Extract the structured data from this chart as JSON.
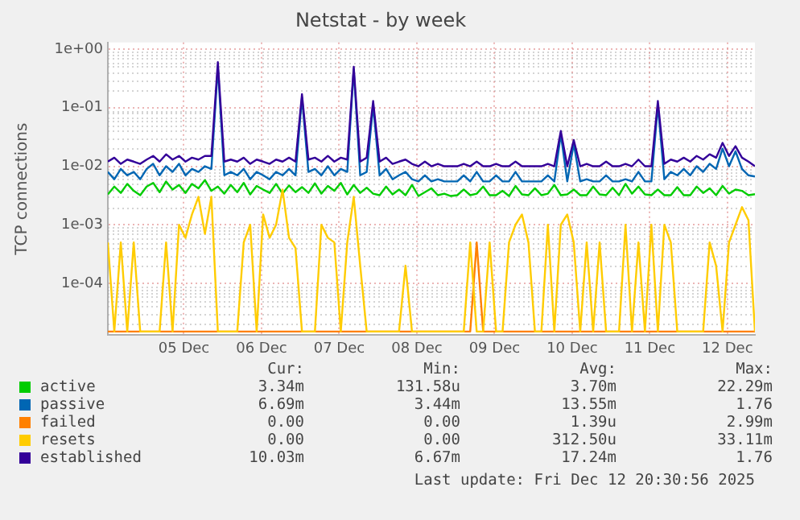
{
  "chart_data": {
    "type": "line",
    "title": "Netstat - by week",
    "ylabel": "TCP connections",
    "log": true,
    "grid": true,
    "legend": "bottom",
    "marker": "none",
    "line_style": "solid",
    "ylim": [
      1.3e-05,
      1.3
    ],
    "yticks": [
      {
        "value": 0.0001,
        "label": "1e-04"
      },
      {
        "value": 0.001,
        "label": "1e-03"
      },
      {
        "value": 0.01,
        "label": "1e-02"
      },
      {
        "value": 0.1,
        "label": "1e-01"
      },
      {
        "value": 1,
        "label": "1e+00"
      }
    ],
    "xlim": [
      "2025-12-04T12:30",
      "2025-12-12T20:30"
    ],
    "xticks": [
      {
        "value": "2025-12-05T12:00",
        "label": "05 Dec"
      },
      {
        "value": "2025-12-06T12:00",
        "label": "06 Dec"
      },
      {
        "value": "2025-12-07T12:00",
        "label": "07 Dec"
      },
      {
        "value": "2025-12-08T12:00",
        "label": "08 Dec"
      },
      {
        "value": "2025-12-09T12:00",
        "label": "09 Dec"
      },
      {
        "value": "2025-12-10T12:00",
        "label": "10 Dec"
      },
      {
        "value": "2025-12-11T12:00",
        "label": "11 Dec"
      },
      {
        "value": "2025-12-12T12:00",
        "label": "12 Dec"
      }
    ],
    "x": [
      "2025-12-04T12:30",
      "2025-12-04T14:30",
      "2025-12-04T16:30",
      "2025-12-04T18:30",
      "2025-12-04T20:30",
      "2025-12-04T22:30",
      "2025-12-05T00:30",
      "2025-12-05T02:30",
      "2025-12-05T04:30",
      "2025-12-05T06:30",
      "2025-12-05T08:30",
      "2025-12-05T10:30",
      "2025-12-05T12:30",
      "2025-12-05T14:30",
      "2025-12-05T16:30",
      "2025-12-05T18:30",
      "2025-12-05T20:30",
      "2025-12-05T22:30",
      "2025-12-06T00:30",
      "2025-12-06T02:30",
      "2025-12-06T04:30",
      "2025-12-06T06:30",
      "2025-12-06T08:30",
      "2025-12-06T10:30",
      "2025-12-06T12:30",
      "2025-12-06T14:30",
      "2025-12-06T16:30",
      "2025-12-06T18:30",
      "2025-12-06T20:30",
      "2025-12-06T22:30",
      "2025-12-07T00:30",
      "2025-12-07T02:30",
      "2025-12-07T04:30",
      "2025-12-07T06:30",
      "2025-12-07T08:30",
      "2025-12-07T10:30",
      "2025-12-07T12:30",
      "2025-12-07T14:30",
      "2025-12-07T16:30",
      "2025-12-07T18:30",
      "2025-12-07T20:30",
      "2025-12-07T22:30",
      "2025-12-08T00:30",
      "2025-12-08T02:30",
      "2025-12-08T04:30",
      "2025-12-08T06:30",
      "2025-12-08T08:30",
      "2025-12-08T10:30",
      "2025-12-08T12:30",
      "2025-12-08T14:30",
      "2025-12-08T16:30",
      "2025-12-08T18:30",
      "2025-12-08T20:30",
      "2025-12-08T22:30",
      "2025-12-09T00:30",
      "2025-12-09T02:30",
      "2025-12-09T04:30",
      "2025-12-09T06:30",
      "2025-12-09T08:30",
      "2025-12-09T10:30",
      "2025-12-09T12:30",
      "2025-12-09T14:30",
      "2025-12-09T16:30",
      "2025-12-09T18:30",
      "2025-12-09T20:30",
      "2025-12-09T22:30",
      "2025-12-10T00:30",
      "2025-12-10T02:30",
      "2025-12-10T04:30",
      "2025-12-10T06:30",
      "2025-12-10T08:30",
      "2025-12-10T10:30",
      "2025-12-10T12:30",
      "2025-12-10T14:30",
      "2025-12-10T16:30",
      "2025-12-10T18:30",
      "2025-12-10T20:30",
      "2025-12-10T22:30",
      "2025-12-11T00:30",
      "2025-12-11T02:30",
      "2025-12-11T04:30",
      "2025-12-11T06:30",
      "2025-12-11T08:30",
      "2025-12-11T10:30",
      "2025-12-11T12:30",
      "2025-12-11T14:30",
      "2025-12-11T16:30",
      "2025-12-11T18:30",
      "2025-12-11T20:30",
      "2025-12-11T22:30",
      "2025-12-12T00:30",
      "2025-12-12T02:30",
      "2025-12-12T04:30",
      "2025-12-12T06:30",
      "2025-12-12T08:30",
      "2025-12-12T10:30",
      "2025-12-12T12:30",
      "2025-12-12T14:30",
      "2025-12-12T16:30",
      "2025-12-12T18:30",
      "2025-12-12T20:30"
    ],
    "series": [
      {
        "name": "active",
        "color": "#00cc00",
        "values": [
          0.0033,
          0.0045,
          0.0035,
          0.005,
          0.0038,
          0.0032,
          0.0045,
          0.0052,
          0.0036,
          0.0055,
          0.004,
          0.0048,
          0.0035,
          0.005,
          0.0042,
          0.0058,
          0.0038,
          0.0045,
          0.0034,
          0.0048,
          0.0036,
          0.0052,
          0.0033,
          0.0046,
          0.004,
          0.0035,
          0.005,
          0.0034,
          0.0047,
          0.0036,
          0.0044,
          0.0035,
          0.0051,
          0.0034,
          0.0046,
          0.0038,
          0.0052,
          0.0033,
          0.0048,
          0.0035,
          0.0043,
          0.0034,
          0.0032,
          0.0045,
          0.0033,
          0.004,
          0.0032,
          0.0048,
          0.0031,
          0.0036,
          0.0042,
          0.0032,
          0.0034,
          0.0031,
          0.0032,
          0.004,
          0.0032,
          0.0034,
          0.0045,
          0.0032,
          0.0032,
          0.0038,
          0.0031,
          0.0046,
          0.0033,
          0.0032,
          0.0042,
          0.0032,
          0.0034,
          0.0048,
          0.0032,
          0.0033,
          0.004,
          0.0032,
          0.0032,
          0.0045,
          0.0033,
          0.0032,
          0.0043,
          0.0032,
          0.005,
          0.0034,
          0.0045,
          0.0033,
          0.0032,
          0.004,
          0.0032,
          0.0032,
          0.0044,
          0.0032,
          0.0032,
          0.0045,
          0.0035,
          0.0042,
          0.0032,
          0.0046,
          0.0034,
          0.004,
          0.0038,
          0.0032,
          0.00334
        ]
      },
      {
        "name": "passive",
        "color": "#0066b3",
        "values": [
          0.008,
          0.006,
          0.009,
          0.007,
          0.008,
          0.006,
          0.009,
          0.011,
          0.007,
          0.01,
          0.008,
          0.011,
          0.007,
          0.009,
          0.008,
          0.01,
          0.009,
          0.5,
          0.007,
          0.008,
          0.007,
          0.009,
          0.006,
          0.008,
          0.007,
          0.006,
          0.008,
          0.007,
          0.009,
          0.007,
          0.15,
          0.008,
          0.009,
          0.007,
          0.01,
          0.007,
          0.009,
          0.008,
          0.45,
          0.007,
          0.008,
          0.11,
          0.007,
          0.009,
          0.006,
          0.007,
          0.008,
          0.006,
          0.0055,
          0.007,
          0.0055,
          0.006,
          0.0055,
          0.0055,
          0.0055,
          0.007,
          0.0055,
          0.008,
          0.0055,
          0.0055,
          0.007,
          0.0055,
          0.0055,
          0.008,
          0.0055,
          0.0055,
          0.0055,
          0.0055,
          0.007,
          0.0055,
          0.035,
          0.0055,
          0.024,
          0.0055,
          0.006,
          0.0055,
          0.0055,
          0.007,
          0.0055,
          0.0055,
          0.006,
          0.0055,
          0.008,
          0.0055,
          0.0055,
          0.11,
          0.006,
          0.008,
          0.007,
          0.009,
          0.007,
          0.01,
          0.008,
          0.011,
          0.009,
          0.02,
          0.01,
          0.018,
          0.009,
          0.007,
          0.00669
        ]
      },
      {
        "name": "failed",
        "color": "#ff8000",
        "values": [
          1.5e-05,
          1.5e-05,
          1.5e-05,
          1.5e-05,
          1.5e-05,
          1.5e-05,
          1.5e-05,
          1.5e-05,
          1.5e-05,
          1.5e-05,
          1.5e-05,
          1.5e-05,
          1.5e-05,
          1.5e-05,
          1.5e-05,
          1.5e-05,
          1.5e-05,
          1.5e-05,
          1.5e-05,
          1.5e-05,
          1.5e-05,
          1.5e-05,
          1.5e-05,
          1.5e-05,
          1.5e-05,
          1.5e-05,
          1.5e-05,
          1.5e-05,
          1.5e-05,
          1.5e-05,
          1.5e-05,
          1.5e-05,
          1.5e-05,
          1.5e-05,
          1.5e-05,
          1.5e-05,
          1.5e-05,
          1.5e-05,
          1.5e-05,
          1.5e-05,
          1.5e-05,
          1.5e-05,
          1.5e-05,
          1.5e-05,
          1.5e-05,
          1.5e-05,
          1.5e-05,
          1.5e-05,
          1.5e-05,
          1.5e-05,
          1.5e-05,
          1.5e-05,
          1.5e-05,
          1.5e-05,
          1.5e-05,
          1.5e-05,
          1.5e-05,
          0.0005,
          1.5e-05,
          1.5e-05,
          1.5e-05,
          1.5e-05,
          1.5e-05,
          1.5e-05,
          1.5e-05,
          1.5e-05,
          1.5e-05,
          1.5e-05,
          1.5e-05,
          1.5e-05,
          1.5e-05,
          1.5e-05,
          1.5e-05,
          1.5e-05,
          1.5e-05,
          1.5e-05,
          1.5e-05,
          1.5e-05,
          1.5e-05,
          1.5e-05,
          1.5e-05,
          1.5e-05,
          1.5e-05,
          1.5e-05,
          1.5e-05,
          1.5e-05,
          1.5e-05,
          1.5e-05,
          1.5e-05,
          1.5e-05,
          1.5e-05,
          1.5e-05,
          1.5e-05,
          1.5e-05,
          1.5e-05,
          1.5e-05,
          1.5e-05,
          1.5e-05,
          1.5e-05,
          1.5e-05,
          1.5e-05
        ]
      },
      {
        "name": "resets",
        "color": "#ffcc00",
        "values": [
          0.0005,
          1.5e-05,
          0.0005,
          1.5e-05,
          0.0005,
          1.5e-05,
          1.5e-05,
          1.5e-05,
          1.5e-05,
          0.0005,
          1.5e-05,
          0.001,
          0.0006,
          0.0015,
          0.003,
          0.0007,
          0.003,
          1.5e-05,
          1.5e-05,
          1.5e-05,
          1.5e-05,
          0.0005,
          0.001,
          1.5e-05,
          0.0015,
          0.0006,
          0.001,
          0.004,
          0.0006,
          0.0004,
          1.5e-05,
          1.5e-05,
          1.5e-05,
          0.001,
          0.0006,
          0.0005,
          1.5e-05,
          0.0005,
          0.003,
          0.0002,
          1.5e-05,
          1.5e-05,
          1.5e-05,
          1.5e-05,
          1.5e-05,
          1.5e-05,
          0.0002,
          1.5e-05,
          1.5e-05,
          1.5e-05,
          1.5e-05,
          1.5e-05,
          1.5e-05,
          1.5e-05,
          1.5e-05,
          1.5e-05,
          0.0005,
          1.5e-05,
          1.5e-05,
          0.0005,
          1.5e-05,
          1.5e-05,
          0.0005,
          0.001,
          0.0015,
          0.0005,
          1.5e-05,
          1.5e-05,
          0.001,
          1.5e-05,
          0.001,
          0.0015,
          0.0005,
          1.5e-05,
          0.0005,
          1.5e-05,
          0.0005,
          1.5e-05,
          1.5e-05,
          1.5e-05,
          0.001,
          1.5e-05,
          0.0005,
          1.5e-05,
          0.001,
          1.5e-05,
          0.001,
          0.0005,
          1.5e-05,
          1.5e-05,
          1.5e-05,
          1.5e-05,
          1.5e-05,
          0.0005,
          0.0002,
          1.5e-05,
          0.0005,
          0.001,
          0.002,
          0.0012,
          1.5e-05
        ]
      },
      {
        "name": "established",
        "color": "#330099",
        "values": [
          0.012,
          0.014,
          0.011,
          0.013,
          0.012,
          0.011,
          0.013,
          0.015,
          0.012,
          0.016,
          0.013,
          0.015,
          0.012,
          0.014,
          0.013,
          0.015,
          0.015,
          0.6,
          0.012,
          0.013,
          0.012,
          0.014,
          0.011,
          0.013,
          0.012,
          0.011,
          0.013,
          0.012,
          0.014,
          0.012,
          0.17,
          0.013,
          0.014,
          0.012,
          0.015,
          0.012,
          0.014,
          0.013,
          0.5,
          0.012,
          0.014,
          0.13,
          0.012,
          0.014,
          0.011,
          0.012,
          0.013,
          0.011,
          0.01,
          0.012,
          0.01,
          0.011,
          0.01,
          0.01,
          0.01,
          0.011,
          0.01,
          0.012,
          0.01,
          0.01,
          0.011,
          0.01,
          0.01,
          0.012,
          0.01,
          0.01,
          0.01,
          0.01,
          0.011,
          0.01,
          0.04,
          0.01,
          0.028,
          0.01,
          0.011,
          0.01,
          0.01,
          0.012,
          0.01,
          0.01,
          0.011,
          0.01,
          0.013,
          0.01,
          0.01,
          0.13,
          0.011,
          0.013,
          0.012,
          0.014,
          0.012,
          0.015,
          0.013,
          0.016,
          0.014,
          0.025,
          0.015,
          0.022,
          0.014,
          0.012,
          0.01003
        ]
      }
    ],
    "annotations": [
      "Cur:",
      "Min:",
      "Avg:",
      "Max:",
      "3.34m",
      "131.58u",
      "3.70m",
      "22.29m",
      "6.69m",
      "3.44m",
      "13.55m",
      "1.76",
      "0.00",
      "0.00",
      "1.39u",
      "2.99m",
      "0.00",
      "0.00",
      "312.50u",
      "33.11m",
      "10.03m",
      "6.67m",
      "17.24m",
      "1.76",
      "Last update: Fri Dec 12 20:30:56 2025"
    ]
  }
}
